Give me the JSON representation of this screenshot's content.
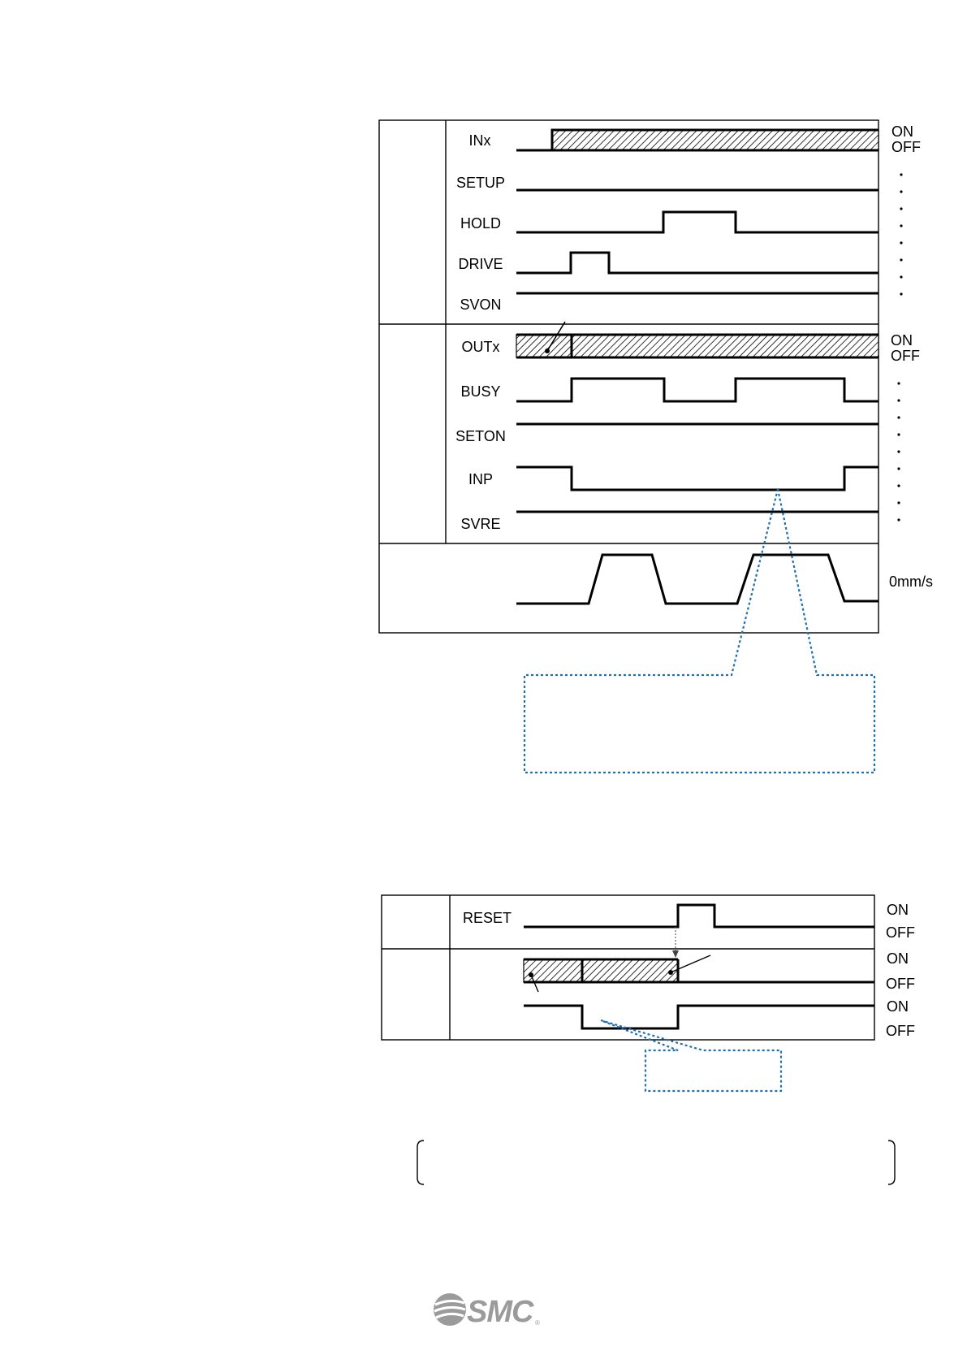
{
  "timing_chart_1": {
    "inputs": [
      "INx",
      "SETUP",
      "HOLD",
      "DRIVE",
      "SVON"
    ],
    "outputs": [
      "OUTx",
      "BUSY",
      "SETON",
      "INP",
      "SVRE"
    ],
    "on_label": "ON",
    "off_label": "OFF",
    "speed_label": "0mm/s"
  },
  "timing_chart_2": {
    "input": "RESET",
    "on_label": "ON",
    "off_label": "OFF"
  },
  "colors": {
    "callout": "#1f6fb2",
    "logo": "#9b9b9b"
  },
  "logo": {
    "text": "SMC",
    "registered": "®"
  }
}
